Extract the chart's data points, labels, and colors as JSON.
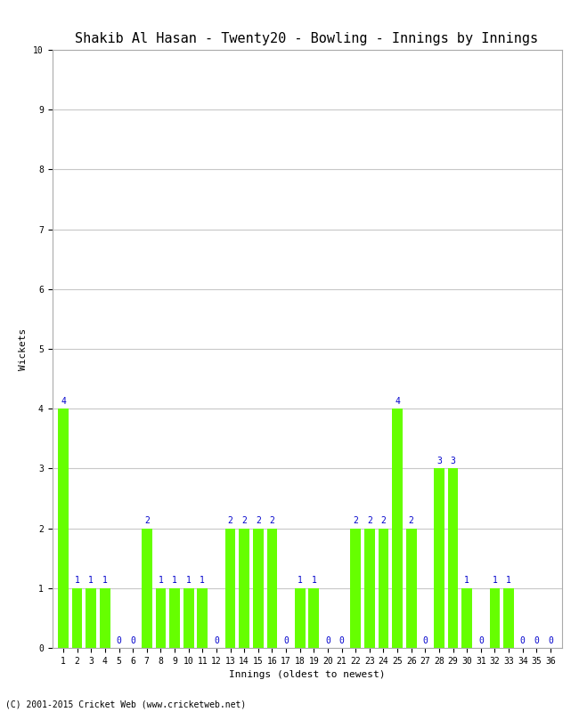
{
  "title_text": "Shakib Al Hasan - Twenty20 - Bowling - Innings by Innings",
  "xlabel": "Innings (oldest to newest)",
  "ylabel": "Wickets",
  "wickets": [
    4,
    1,
    1,
    1,
    0,
    0,
    2,
    1,
    1,
    1,
    1,
    0,
    2,
    2,
    2,
    2,
    0,
    1,
    1,
    0,
    0,
    2,
    2,
    2,
    4,
    2,
    0,
    3,
    3,
    1,
    0,
    1,
    1,
    0,
    0,
    0
  ],
  "bar_color": "#66FF00",
  "label_color": "#0000CC",
  "ylim": [
    0,
    10
  ],
  "yticks": [
    0,
    1,
    2,
    3,
    4,
    5,
    6,
    7,
    8,
    9,
    10
  ],
  "background_color": "#FFFFFF",
  "grid_color": "#C8C8C8",
  "footer": "(C) 2001-2015 Cricket Web (www.cricketweb.net)",
  "title_fontsize": 11,
  "axis_label_fontsize": 8,
  "tick_fontsize": 7,
  "bar_label_fontsize": 7,
  "footer_fontsize": 7,
  "fig_width": 6.5,
  "fig_height": 8.0,
  "dpi": 100
}
